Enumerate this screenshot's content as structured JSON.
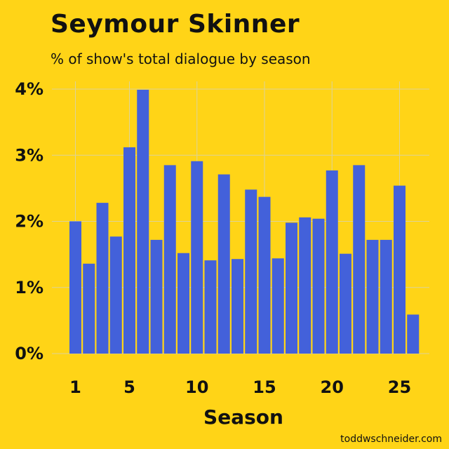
{
  "chart_data": {
    "type": "bar",
    "title": "Seymour Skinner",
    "subtitle": "% of show's total dialogue by season",
    "xlabel": "Season",
    "ylabel": "",
    "x": [
      1,
      2,
      3,
      4,
      5,
      6,
      7,
      8,
      9,
      10,
      11,
      12,
      13,
      14,
      15,
      16,
      17,
      18,
      19,
      20,
      21,
      22,
      23,
      24,
      25,
      26
    ],
    "values": [
      2.0,
      1.36,
      2.28,
      1.77,
      3.12,
      3.99,
      1.72,
      2.85,
      1.52,
      2.91,
      1.41,
      2.71,
      1.43,
      2.48,
      2.37,
      1.44,
      1.98,
      2.06,
      2.04,
      2.77,
      1.51,
      2.85,
      1.72,
      1.72,
      2.54,
      0.59
    ],
    "x_ticks": [
      1,
      5,
      10,
      15,
      20,
      25
    ],
    "x_tick_labels": [
      "1",
      "5",
      "10",
      "15",
      "20",
      "25"
    ],
    "y_ticks": [
      0,
      1,
      2,
      3,
      4
    ],
    "y_tick_labels": [
      "0%",
      "1%",
      "2%",
      "3%",
      "4%"
    ],
    "ylim": [
      0,
      4
    ],
    "grid": true,
    "colors": {
      "background": "#FFD417",
      "bar": "#4361DA",
      "grid": "#DCD29A",
      "text": "#111111"
    }
  },
  "credit": "toddwschneider.com"
}
